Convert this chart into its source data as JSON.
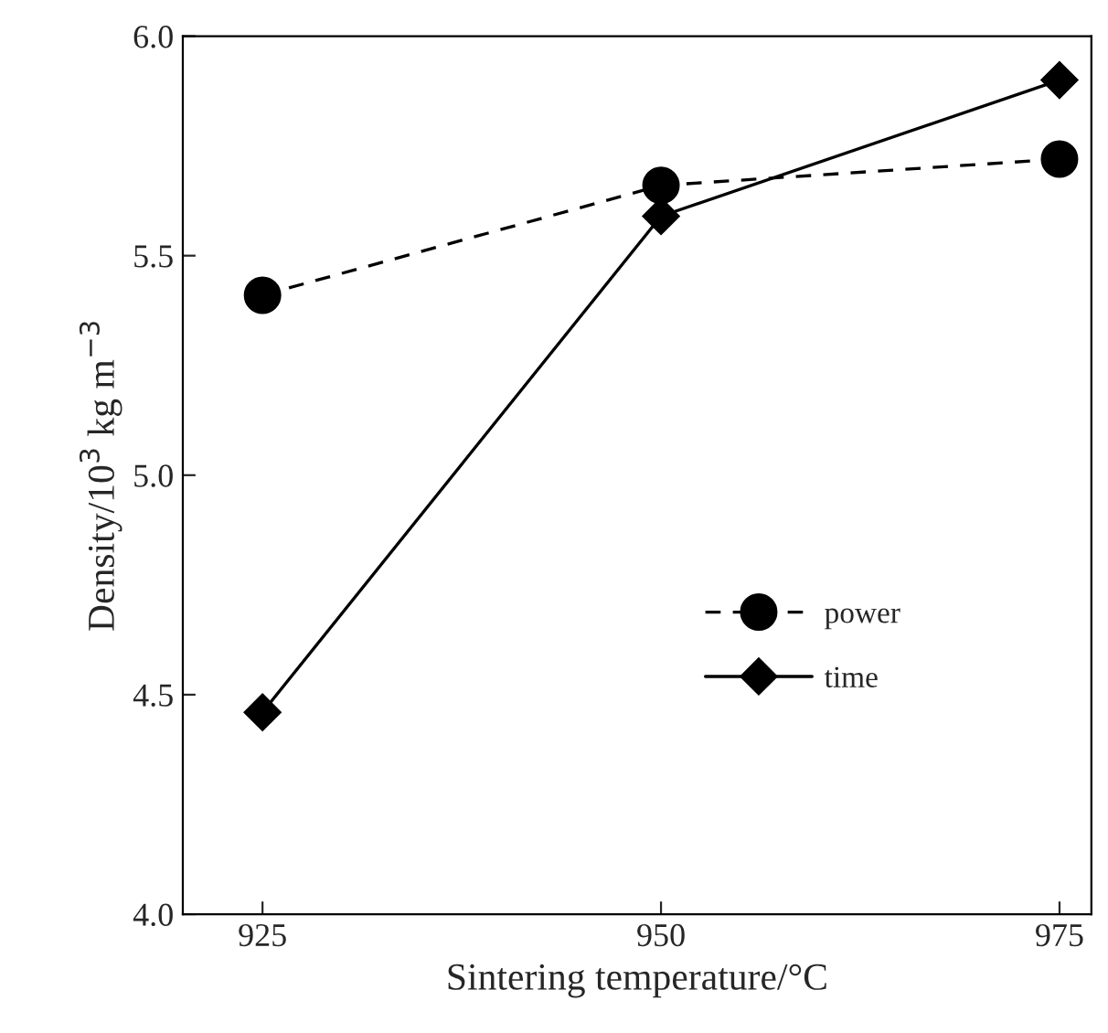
{
  "chart_data": {
    "type": "line",
    "xlabel": "Sintering temperature/°C",
    "ylabel": "Density/10$^{3}$ kg m$^{−3}$",
    "x": [
      925,
      950,
      975
    ],
    "xlim": [
      920,
      977
    ],
    "xticks": [
      925,
      950,
      975
    ],
    "ylim": [
      4.0,
      6.0
    ],
    "yticks": [
      {
        "value": 4.0,
        "label": "4.0"
      },
      {
        "value": 4.5,
        "label": "4.5"
      },
      {
        "value": 5.0,
        "label": "5.0"
      },
      {
        "value": 5.5,
        "label": "5.5"
      },
      {
        "value": 6.0,
        "label": "6.0"
      }
    ],
    "legend": "lower right",
    "series": [
      {
        "name": "power",
        "color": "#000000",
        "marker": "circle",
        "line_style": "dashed",
        "values": [
          5.41,
          5.66,
          5.72
        ]
      },
      {
        "name": "time",
        "color": "#000000",
        "marker": "diamond",
        "line_style": "solid",
        "values": [
          4.46,
          5.59,
          5.9
        ]
      }
    ]
  }
}
